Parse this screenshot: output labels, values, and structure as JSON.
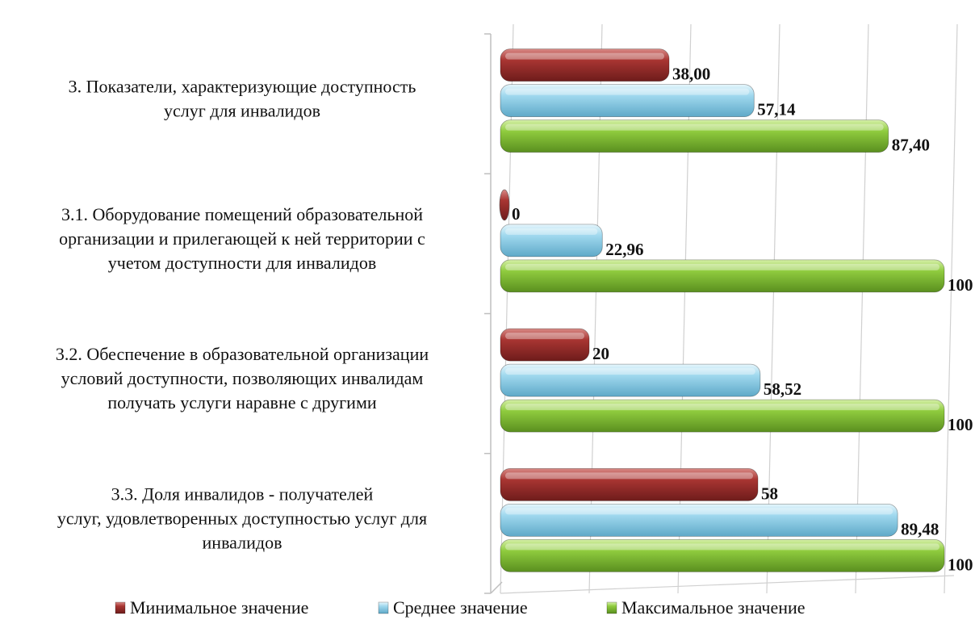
{
  "chart_data": {
    "type": "bar",
    "orientation": "horizontal",
    "categories": [
      [
        "3. Показатели, характеризующие доступность",
        "услуг для инвалидов"
      ],
      [
        "3.1. Оборудование помещений образовательной",
        "организации и прилегающей к ней территории с",
        "учетом доступности для инвалидов"
      ],
      [
        "3.2. Обеспечение в образовательной организации",
        "условий доступности, позволяющих инвалидам",
        "получать услуги наравне с другими"
      ],
      [
        "3.3. Доля инвалидов - получателей",
        "услуг, удовлетворенных доступностью услуг для",
        "инвалидов"
      ]
    ],
    "series": [
      {
        "name": "Минимальное значение",
        "color": "#9a2d2b",
        "values": [
          38.0,
          0,
          20,
          58
        ],
        "labels": [
          "38,00",
          "0",
          "20",
          "58"
        ]
      },
      {
        "name": "Среднее значение",
        "color": "#8ecfe6",
        "values": [
          57.14,
          22.96,
          58.52,
          89.48
        ],
        "labels": [
          "57,14",
          "22,96",
          "58,52",
          "89,48"
        ]
      },
      {
        "name": "Максимальное значение",
        "color": "#8bc83a",
        "values": [
          87.4,
          100,
          100,
          100
        ],
        "labels": [
          "87,40",
          "100",
          "100",
          "100"
        ]
      }
    ],
    "xlim": [
      0,
      100
    ],
    "grid": true,
    "legend_position": "bottom",
    "style": "3d"
  }
}
